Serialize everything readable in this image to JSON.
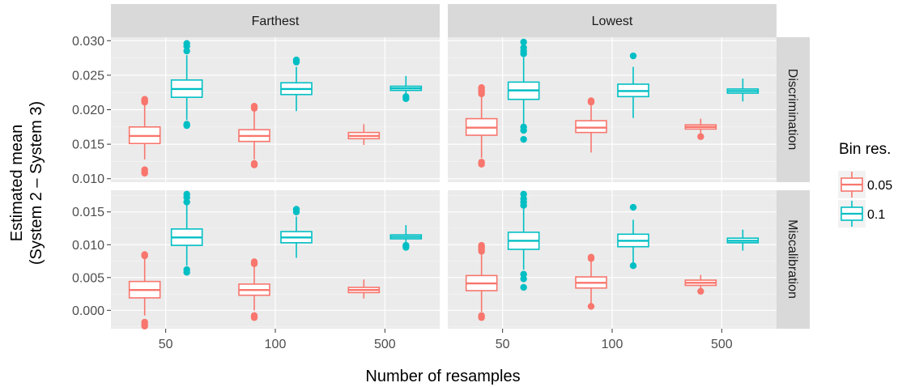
{
  "chart_data": {
    "type": "boxplot",
    "facet_columns": [
      "Farthest",
      "Lowest"
    ],
    "facet_rows": [
      "Discrimination",
      "Miscalibration"
    ],
    "x_categories": [
      "50",
      "100",
      "500"
    ],
    "xlabel": "Number of resamples",
    "ylabel_lines": [
      "Estimated mean",
      "(System 2 – System 3)"
    ],
    "legend": {
      "title": "Bin res.",
      "entries": [
        {
          "name": "0.05",
          "color": "#F8766D"
        },
        {
          "name": "0.1",
          "color": "#00BFC4"
        }
      ]
    },
    "panels": [
      {
        "column": "Farthest",
        "row": "Discrimination",
        "ylim": [
          0.0095,
          0.0305
        ],
        "y_ticks": [
          "0.010",
          "0.015",
          "0.020",
          "0.025",
          "0.030"
        ],
        "y_tick_values": [
          0.01,
          0.015,
          0.02,
          0.025,
          0.03
        ],
        "boxes": [
          {
            "cat": "50",
            "series": "0.05",
            "lower": 0.0128,
            "q1": 0.0151,
            "median": 0.0162,
            "q3": 0.0175,
            "upper": 0.0208,
            "outliers": [
              0.0215,
              0.0213,
              0.0211,
              0.0113,
              0.011,
              0.0108
            ]
          },
          {
            "cat": "50",
            "series": "0.1",
            "lower": 0.0185,
            "q1": 0.0218,
            "median": 0.023,
            "q3": 0.0243,
            "upper": 0.0279,
            "outliers": [
              0.0296,
              0.0292,
              0.0285,
              0.0179,
              0.0177
            ]
          },
          {
            "cat": "100",
            "series": "0.05",
            "lower": 0.0128,
            "q1": 0.0154,
            "median": 0.0162,
            "q3": 0.0171,
            "upper": 0.0198,
            "outliers": [
              0.0205,
              0.0202,
              0.0122,
              0.012
            ]
          },
          {
            "cat": "100",
            "series": "0.1",
            "lower": 0.0198,
            "q1": 0.0222,
            "median": 0.023,
            "q3": 0.0239,
            "upper": 0.0262,
            "outliers": [
              0.0272,
              0.0269
            ]
          },
          {
            "cat": "500",
            "series": "0.05",
            "lower": 0.0149,
            "q1": 0.0158,
            "median": 0.0162,
            "q3": 0.0167,
            "upper": 0.0179,
            "outliers": []
          },
          {
            "cat": "500",
            "series": "0.1",
            "lower": 0.022,
            "q1": 0.0228,
            "median": 0.0231,
            "q3": 0.0234,
            "upper": 0.0249,
            "outliers": [
              0.0219,
              0.0216
            ]
          }
        ]
      },
      {
        "column": "Lowest",
        "row": "Discrimination",
        "ylim": [
          0.0095,
          0.0305
        ],
        "y_ticks": [
          "0.010",
          "0.015",
          "0.020",
          "0.025",
          "0.030"
        ],
        "y_tick_values": [
          0.01,
          0.015,
          0.02,
          0.025,
          0.03
        ],
        "boxes": [
          {
            "cat": "50",
            "series": "0.05",
            "lower": 0.013,
            "q1": 0.0163,
            "median": 0.0174,
            "q3": 0.0187,
            "upper": 0.022,
            "outliers": [
              0.0232,
              0.0229,
              0.0226,
              0.0223,
              0.0124,
              0.0121
            ]
          },
          {
            "cat": "50",
            "series": "0.1",
            "lower": 0.018,
            "q1": 0.0215,
            "median": 0.0228,
            "q3": 0.024,
            "upper": 0.0276,
            "outliers": [
              0.0298,
              0.029,
              0.0285,
              0.0281,
              0.0175,
              0.017,
              0.0157
            ]
          },
          {
            "cat": "100",
            "series": "0.05",
            "lower": 0.0138,
            "q1": 0.0167,
            "median": 0.0174,
            "q3": 0.0184,
            "upper": 0.0206,
            "outliers": [
              0.0213,
              0.0211
            ]
          },
          {
            "cat": "100",
            "series": "0.1",
            "lower": 0.0188,
            "q1": 0.0219,
            "median": 0.0227,
            "q3": 0.0237,
            "upper": 0.0262,
            "outliers": [
              0.0278
            ]
          },
          {
            "cat": "500",
            "series": "0.05",
            "lower": 0.0166,
            "q1": 0.0172,
            "median": 0.0175,
            "q3": 0.0178,
            "upper": 0.0187,
            "outliers": [
              0.0161
            ]
          },
          {
            "cat": "500",
            "series": "0.1",
            "lower": 0.0212,
            "q1": 0.0224,
            "median": 0.0227,
            "q3": 0.023,
            "upper": 0.0245,
            "outliers": []
          }
        ]
      },
      {
        "column": "Farthest",
        "row": "Miscalibration",
        "ylim": [
          -0.0028,
          0.0183
        ],
        "y_ticks": [
          "0.000",
          "0.005",
          "0.010",
          "0.015"
        ],
        "y_tick_values": [
          0.0,
          0.005,
          0.01,
          0.015
        ],
        "boxes": [
          {
            "cat": "50",
            "series": "0.05",
            "lower": -0.0008,
            "q1": 0.0019,
            "median": 0.0031,
            "q3": 0.0044,
            "upper": 0.0079,
            "outliers": [
              0.0085,
              0.0083,
              -0.0018,
              -0.0021,
              -0.0024
            ]
          },
          {
            "cat": "50",
            "series": "0.1",
            "lower": 0.0068,
            "q1": 0.0099,
            "median": 0.0111,
            "q3": 0.0124,
            "upper": 0.0161,
            "outliers": [
              0.0177,
              0.0172,
              0.0165,
              0.0062,
              0.0058
            ]
          },
          {
            "cat": "100",
            "series": "0.05",
            "lower": 0.0,
            "q1": 0.0023,
            "median": 0.0031,
            "q3": 0.004,
            "upper": 0.0066,
            "outliers": [
              0.0074,
              0.0071,
              -0.0008,
              -0.0011
            ]
          },
          {
            "cat": "100",
            "series": "0.1",
            "lower": 0.008,
            "q1": 0.0103,
            "median": 0.0111,
            "q3": 0.012,
            "upper": 0.0143,
            "outliers": [
              0.0154,
              0.015
            ]
          },
          {
            "cat": "500",
            "series": "0.05",
            "lower": 0.0018,
            "q1": 0.0027,
            "median": 0.0031,
            "q3": 0.0035,
            "upper": 0.0047,
            "outliers": []
          },
          {
            "cat": "500",
            "series": "0.1",
            "lower": 0.0102,
            "q1": 0.0109,
            "median": 0.0112,
            "q3": 0.0115,
            "upper": 0.013,
            "outliers": [
              0.0099,
              0.0096
            ]
          }
        ]
      },
      {
        "column": "Lowest",
        "row": "Miscalibration",
        "ylim": [
          -0.0028,
          0.0183
        ],
        "y_ticks": [
          "0.000",
          "0.005",
          "0.010",
          "0.015"
        ],
        "y_tick_values": [
          0.0,
          0.005,
          0.01,
          0.015
        ],
        "boxes": [
          {
            "cat": "50",
            "series": "0.05",
            "lower": -0.0002,
            "q1": 0.003,
            "median": 0.0041,
            "q3": 0.0053,
            "upper": 0.0085,
            "outliers": [
              0.0099,
              0.0096,
              0.0093,
              0.009,
              -0.0008,
              -0.0011
            ]
          },
          {
            "cat": "50",
            "series": "0.1",
            "lower": 0.0062,
            "q1": 0.0093,
            "median": 0.0106,
            "q3": 0.0119,
            "upper": 0.0155,
            "outliers": [
              0.0177,
              0.017,
              0.0165,
              0.016,
              0.0055,
              0.0048,
              0.0035
            ]
          },
          {
            "cat": "100",
            "series": "0.05",
            "lower": 0.001,
            "q1": 0.0034,
            "median": 0.0042,
            "q3": 0.0051,
            "upper": 0.0075,
            "outliers": [
              0.0081,
              0.0079,
              0.0006
            ]
          },
          {
            "cat": "100",
            "series": "0.1",
            "lower": 0.0072,
            "q1": 0.0097,
            "median": 0.0106,
            "q3": 0.0116,
            "upper": 0.0138,
            "outliers": [
              0.0157,
              0.0068
            ]
          },
          {
            "cat": "500",
            "series": "0.05",
            "lower": 0.0033,
            "q1": 0.0038,
            "median": 0.0042,
            "q3": 0.0046,
            "upper": 0.0054,
            "outliers": [
              0.0029
            ]
          },
          {
            "cat": "500",
            "series": "0.1",
            "lower": 0.0091,
            "q1": 0.0103,
            "median": 0.0106,
            "q3": 0.011,
            "upper": 0.0123,
            "outliers": []
          }
        ]
      }
    ]
  }
}
